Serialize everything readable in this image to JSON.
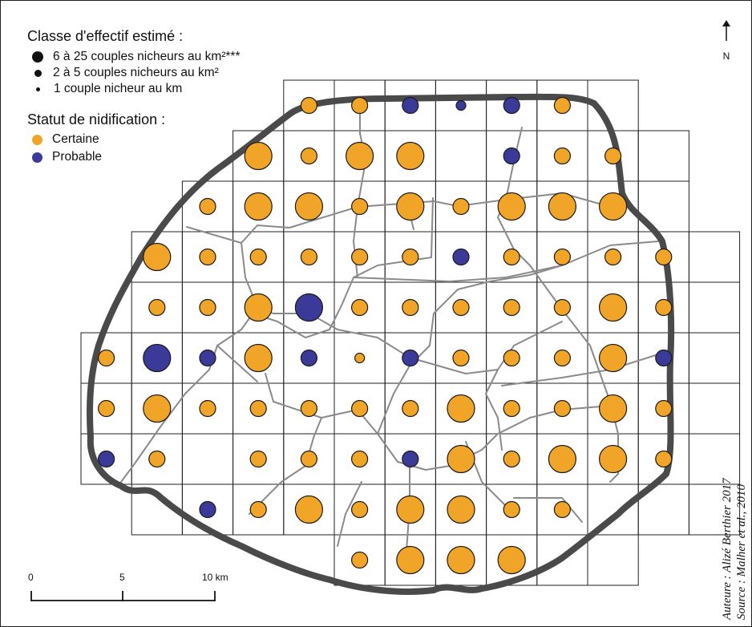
{
  "legend": {
    "class_title": "Classe d'effectif estimé :",
    "classes": [
      {
        "label": "6 à 25 couples nicheurs au km²***",
        "size_class": 3
      },
      {
        "label": "2 à 5 couples nicheurs au km²",
        "size_class": 2
      },
      {
        "label": "1 couple nicheur au km",
        "size_class": 1
      }
    ],
    "status_title": "Statut de nidification :",
    "statuses": [
      {
        "label": "Certaine",
        "color": "#f0a428"
      },
      {
        "label": "Probable",
        "color": "#3b3a99"
      }
    ]
  },
  "north_label": "N",
  "scale": {
    "labels": [
      "0",
      "5",
      "10 km"
    ]
  },
  "credits": {
    "author": "Auteure : Alizé Berthier 2017",
    "source": "Source : Malher et al., 2010"
  },
  "colors": {
    "certaine": "#f0a428",
    "probable": "#3b3a99",
    "boundary": "#4a4a4a",
    "roads": "#8a8a8a",
    "grid": "#222222"
  },
  "grid": {
    "rows": [
      {
        "cols": [
          4,
          10
        ]
      },
      {
        "cols": [
          3,
          11
        ]
      },
      {
        "cols": [
          2,
          11
        ]
      },
      {
        "cols": [
          1,
          12
        ]
      },
      {
        "cols": [
          1,
          12
        ]
      },
      {
        "cols": [
          0,
          12
        ]
      },
      {
        "cols": [
          0,
          12
        ]
      },
      {
        "cols": [
          0,
          12
        ]
      },
      {
        "cols": [
          1,
          12
        ]
      },
      {
        "cols": [
          5,
          10
        ]
      }
    ]
  },
  "cells": [
    {
      "r": 0,
      "c": 4,
      "s": "C",
      "n": 1
    },
    {
      "r": 0,
      "c": 5,
      "s": "C",
      "n": 1
    },
    {
      "r": 0,
      "c": 6,
      "s": "P",
      "n": 1
    },
    {
      "r": 0,
      "c": 7,
      "s": "P",
      "n": 0
    },
    {
      "r": 0,
      "c": 8,
      "s": "P",
      "n": 1
    },
    {
      "r": 0,
      "c": 9,
      "s": "C",
      "n": 1
    },
    {
      "r": 1,
      "c": 3,
      "s": "C",
      "n": 2
    },
    {
      "r": 1,
      "c": 4,
      "s": "C",
      "n": 1
    },
    {
      "r": 1,
      "c": 5,
      "s": "C",
      "n": 2
    },
    {
      "r": 1,
      "c": 6,
      "s": "C",
      "n": 2
    },
    {
      "r": 1,
      "c": 8,
      "s": "P",
      "n": 1
    },
    {
      "r": 1,
      "c": 9,
      "s": "C",
      "n": 1
    },
    {
      "r": 1,
      "c": 10,
      "s": "C",
      "n": 1
    },
    {
      "r": 2,
      "c": 2,
      "s": "C",
      "n": 1
    },
    {
      "r": 2,
      "c": 3,
      "s": "C",
      "n": 2
    },
    {
      "r": 2,
      "c": 4,
      "s": "C",
      "n": 2
    },
    {
      "r": 2,
      "c": 5,
      "s": "C",
      "n": 1
    },
    {
      "r": 2,
      "c": 6,
      "s": "C",
      "n": 2
    },
    {
      "r": 2,
      "c": 7,
      "s": "C",
      "n": 1
    },
    {
      "r": 2,
      "c": 8,
      "s": "C",
      "n": 2
    },
    {
      "r": 2,
      "c": 9,
      "s": "C",
      "n": 2
    },
    {
      "r": 2,
      "c": 10,
      "s": "C",
      "n": 2
    },
    {
      "r": 3,
      "c": 1,
      "s": "C",
      "n": 2
    },
    {
      "r": 3,
      "c": 2,
      "s": "C",
      "n": 1
    },
    {
      "r": 3,
      "c": 3,
      "s": "C",
      "n": 1
    },
    {
      "r": 3,
      "c": 4,
      "s": "C",
      "n": 1
    },
    {
      "r": 3,
      "c": 5,
      "s": "C",
      "n": 1
    },
    {
      "r": 3,
      "c": 6,
      "s": "C",
      "n": 1
    },
    {
      "r": 3,
      "c": 7,
      "s": "P",
      "n": 1
    },
    {
      "r": 3,
      "c": 8,
      "s": "C",
      "n": 1
    },
    {
      "r": 3,
      "c": 9,
      "s": "C",
      "n": 1
    },
    {
      "r": 3,
      "c": 10,
      "s": "C",
      "n": 1
    },
    {
      "r": 3,
      "c": 11,
      "s": "C",
      "n": 1
    },
    {
      "r": 4,
      "c": 1,
      "s": "C",
      "n": 1
    },
    {
      "r": 4,
      "c": 2,
      "s": "C",
      "n": 1
    },
    {
      "r": 4,
      "c": 3,
      "s": "C",
      "n": 2
    },
    {
      "r": 4,
      "c": 4,
      "s": "P",
      "n": 2
    },
    {
      "r": 4,
      "c": 5,
      "s": "C",
      "n": 1
    },
    {
      "r": 4,
      "c": 6,
      "s": "C",
      "n": 1
    },
    {
      "r": 4,
      "c": 7,
      "s": "C",
      "n": 1
    },
    {
      "r": 4,
      "c": 8,
      "s": "C",
      "n": 1
    },
    {
      "r": 4,
      "c": 9,
      "s": "C",
      "n": 1
    },
    {
      "r": 4,
      "c": 10,
      "s": "C",
      "n": 2
    },
    {
      "r": 4,
      "c": 11,
      "s": "C",
      "n": 1
    },
    {
      "r": 5,
      "c": 0,
      "s": "C",
      "n": 1
    },
    {
      "r": 5,
      "c": 1,
      "s": "P",
      "n": 2
    },
    {
      "r": 5,
      "c": 2,
      "s": "P",
      "n": 1
    },
    {
      "r": 5,
      "c": 3,
      "s": "C",
      "n": 2
    },
    {
      "r": 5,
      "c": 4,
      "s": "P",
      "n": 1
    },
    {
      "r": 5,
      "c": 5,
      "s": "C",
      "n": 0
    },
    {
      "r": 5,
      "c": 6,
      "s": "P",
      "n": 1
    },
    {
      "r": 5,
      "c": 7,
      "s": "C",
      "n": 1
    },
    {
      "r": 5,
      "c": 8,
      "s": "C",
      "n": 1
    },
    {
      "r": 5,
      "c": 9,
      "s": "C",
      "n": 1
    },
    {
      "r": 5,
      "c": 10,
      "s": "C",
      "n": 2
    },
    {
      "r": 5,
      "c": 11,
      "s": "P",
      "n": 1
    },
    {
      "r": 6,
      "c": 0,
      "s": "C",
      "n": 1
    },
    {
      "r": 6,
      "c": 1,
      "s": "C",
      "n": 2
    },
    {
      "r": 6,
      "c": 2,
      "s": "C",
      "n": 1
    },
    {
      "r": 6,
      "c": 3,
      "s": "C",
      "n": 1
    },
    {
      "r": 6,
      "c": 4,
      "s": "C",
      "n": 1
    },
    {
      "r": 6,
      "c": 5,
      "s": "C",
      "n": 1
    },
    {
      "r": 6,
      "c": 6,
      "s": "C",
      "n": 1
    },
    {
      "r": 6,
      "c": 7,
      "s": "C",
      "n": 2
    },
    {
      "r": 6,
      "c": 8,
      "s": "C",
      "n": 1
    },
    {
      "r": 6,
      "c": 9,
      "s": "C",
      "n": 1
    },
    {
      "r": 6,
      "c": 10,
      "s": "C",
      "n": 2
    },
    {
      "r": 6,
      "c": 11,
      "s": "C",
      "n": 1
    },
    {
      "r": 7,
      "c": 0,
      "s": "P",
      "n": 1
    },
    {
      "r": 7,
      "c": 1,
      "s": "C",
      "n": 1
    },
    {
      "r": 7,
      "c": 3,
      "s": "C",
      "n": 1
    },
    {
      "r": 7,
      "c": 4,
      "s": "C",
      "n": 1
    },
    {
      "r": 7,
      "c": 5,
      "s": "C",
      "n": 1
    },
    {
      "r": 7,
      "c": 6,
      "s": "P",
      "n": 1
    },
    {
      "r": 7,
      "c": 7,
      "s": "C",
      "n": 2
    },
    {
      "r": 7,
      "c": 8,
      "s": "C",
      "n": 1
    },
    {
      "r": 7,
      "c": 9,
      "s": "C",
      "n": 2
    },
    {
      "r": 7,
      "c": 10,
      "s": "C",
      "n": 2
    },
    {
      "r": 7,
      "c": 11,
      "s": "C",
      "n": 1
    },
    {
      "r": 8,
      "c": 2,
      "s": "P",
      "n": 1
    },
    {
      "r": 8,
      "c": 3,
      "s": "C",
      "n": 1
    },
    {
      "r": 8,
      "c": 4,
      "s": "C",
      "n": 2
    },
    {
      "r": 8,
      "c": 5,
      "s": "C",
      "n": 1
    },
    {
      "r": 8,
      "c": 6,
      "s": "C",
      "n": 2
    },
    {
      "r": 8,
      "c": 7,
      "s": "C",
      "n": 2
    },
    {
      "r": 8,
      "c": 8,
      "s": "C",
      "n": 1
    },
    {
      "r": 8,
      "c": 9,
      "s": "C",
      "n": 1
    },
    {
      "r": 9,
      "c": 5,
      "s": "C",
      "n": 1
    },
    {
      "r": 9,
      "c": 6,
      "s": "C",
      "n": 2
    },
    {
      "r": 9,
      "c": 7,
      "s": "C",
      "n": 2
    },
    {
      "r": 9,
      "c": 8,
      "s": "C",
      "n": 2
    }
  ]
}
